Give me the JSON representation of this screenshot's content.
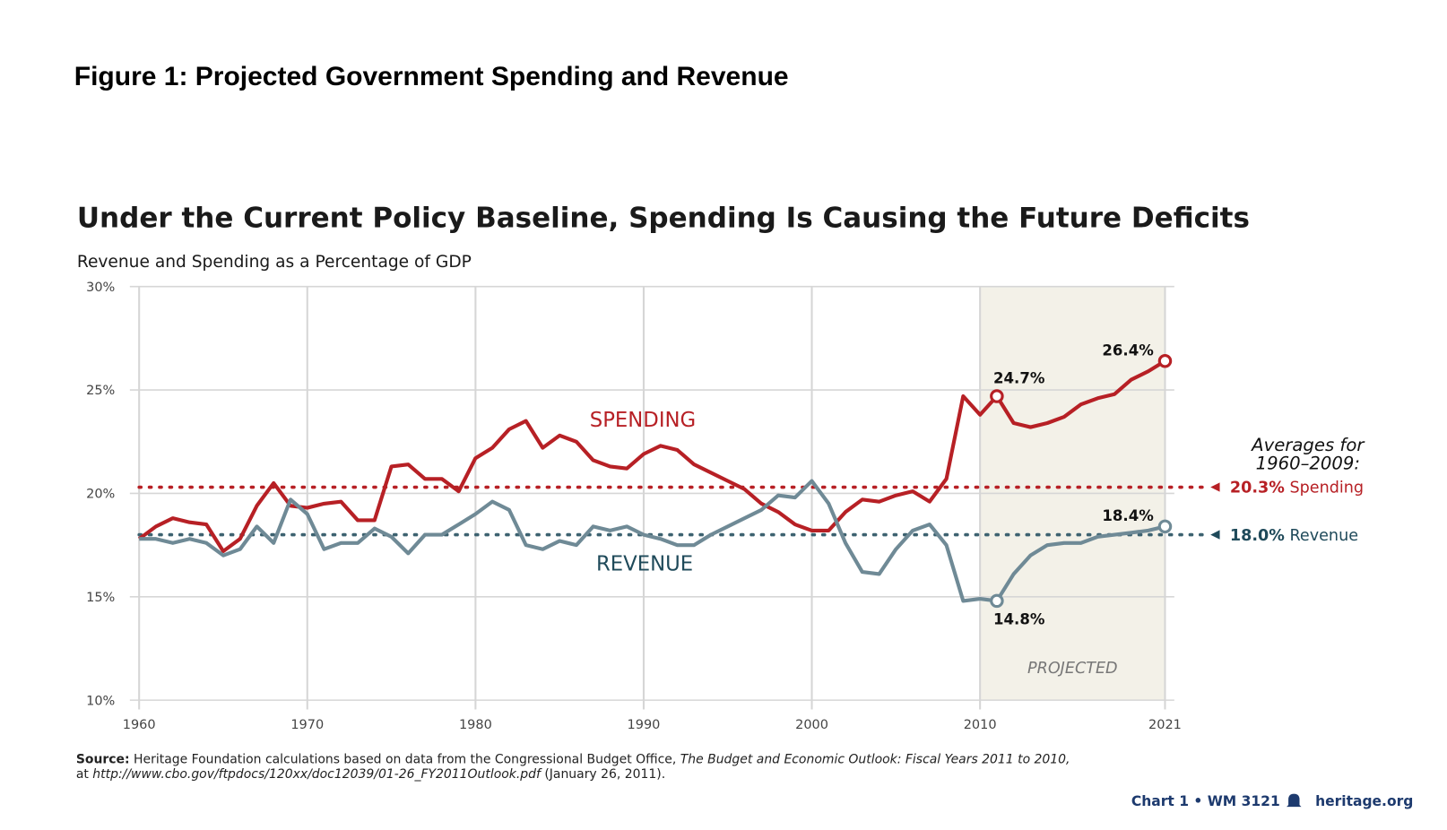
{
  "figure_caption": "Figure 1: Projected Government Spending and Revenue",
  "chart_data": {
    "type": "line",
    "title": "Under the Current Policy Baseline, Spending Is Causing the Future Deficits",
    "subtitle": "Revenue and Spending as a Percentage of GDP",
    "xlim": [
      1960,
      2021
    ],
    "ylim": [
      10,
      30
    ],
    "x_ticks": [
      "1960",
      "1970",
      "1980",
      "1990",
      "2000",
      "2010",
      "2021"
    ],
    "y_ticks": [
      "10%",
      "15%",
      "20%",
      "25%",
      "30%"
    ],
    "grid": true,
    "projected_region": {
      "from": 2010,
      "to": 2021,
      "label": "PROJECTED",
      "color": "#f3f1e8"
    },
    "x": [
      1960,
      1961,
      1962,
      1963,
      1964,
      1965,
      1966,
      1967,
      1968,
      1969,
      1970,
      1971,
      1972,
      1973,
      1974,
      1975,
      1976,
      1977,
      1978,
      1979,
      1980,
      1981,
      1982,
      1983,
      1984,
      1985,
      1986,
      1987,
      1988,
      1989,
      1990,
      1991,
      1992,
      1993,
      1994,
      1995,
      1996,
      1997,
      1998,
      1999,
      2000,
      2001,
      2002,
      2003,
      2004,
      2005,
      2006,
      2007,
      2008,
      2009,
      2010,
      2011,
      2012,
      2013,
      2014,
      2015,
      2016,
      2017,
      2018,
      2019,
      2020,
      2021
    ],
    "series": [
      {
        "name": "SPENDING",
        "color": "#b72025",
        "values": [
          17.8,
          18.4,
          18.8,
          18.6,
          18.5,
          17.2,
          17.8,
          19.4,
          20.5,
          19.4,
          19.3,
          19.5,
          19.6,
          18.7,
          18.7,
          21.3,
          21.4,
          20.7,
          20.7,
          20.1,
          21.7,
          22.2,
          23.1,
          23.5,
          22.2,
          22.8,
          22.5,
          21.6,
          21.3,
          21.2,
          21.9,
          22.3,
          22.1,
          21.4,
          21.0,
          20.6,
          20.2,
          19.5,
          19.1,
          18.5,
          18.2,
          18.2,
          19.1,
          19.7,
          19.6,
          19.9,
          20.1,
          19.6,
          20.7,
          24.7,
          23.8,
          24.7,
          23.4,
          23.2,
          23.4,
          23.7,
          24.3,
          24.6,
          24.8,
          25.5,
          25.9,
          26.4
        ],
        "average": {
          "value": 20.3,
          "label_value": "20.3%",
          "label_text": "Spending"
        }
      },
      {
        "name": "REVENUE",
        "color": "#6f8a96",
        "label_color": "#1f4a5a",
        "values": [
          17.8,
          17.8,
          17.6,
          17.8,
          17.6,
          17.0,
          17.3,
          18.4,
          17.6,
          19.7,
          19.0,
          17.3,
          17.6,
          17.6,
          18.3,
          17.9,
          17.1,
          18.0,
          18.0,
          18.5,
          19.0,
          19.6,
          19.2,
          17.5,
          17.3,
          17.7,
          17.5,
          18.4,
          18.2,
          18.4,
          18.0,
          17.8,
          17.5,
          17.5,
          18.0,
          18.4,
          18.8,
          19.2,
          19.9,
          19.8,
          20.6,
          19.5,
          17.6,
          16.2,
          16.1,
          17.3,
          18.2,
          18.5,
          17.5,
          14.8,
          14.9,
          14.8,
          16.1,
          17.0,
          17.5,
          17.6,
          17.6,
          17.9,
          18.0,
          18.1,
          18.2,
          18.4
        ],
        "average": {
          "value": 18.0,
          "label_value": "18.0%",
          "label_text": "Revenue"
        }
      }
    ],
    "annotations": [
      {
        "series": "SPENDING",
        "x": 2011,
        "y": 24.7,
        "text": "24.7%",
        "position": "above"
      },
      {
        "series": "SPENDING",
        "x": 2021,
        "y": 26.4,
        "text": "26.4%",
        "position": "above-left"
      },
      {
        "series": "REVENUE",
        "x": 2011,
        "y": 14.8,
        "text": "14.8%",
        "position": "below"
      },
      {
        "series": "REVENUE",
        "x": 2021,
        "y": 18.4,
        "text": "18.4%",
        "position": "above-left"
      }
    ],
    "averages_heading": [
      "Averages for",
      "1960–2009:"
    ],
    "source_label": "Source:",
    "source_line1": "Heritage Foundation calculations based on data from the Congressional Budget Office,",
    "source_line1_italic": "The Budget and Economic Outlook: Fiscal Years 2011 to 2010,",
    "source_line2_prefix": "at",
    "source_line2_url": "http://www.cbo.gov/ftpdocs/120xx/doc12039/01-26_FY2011Outlook.pdf",
    "source_line2_suffix": "(January 26, 2011).",
    "footer": {
      "chart_id": "Chart 1 • WM 3121",
      "icon": "liberty-bell-icon",
      "site": "heritage.org"
    }
  }
}
